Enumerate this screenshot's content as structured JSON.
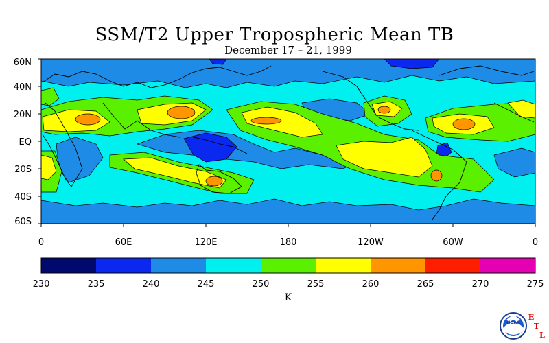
{
  "title": "SSM/T2 Upper Tropospheric Mean TB",
  "subtitle": "December 17 – 21, 1999",
  "map": {
    "lat_labels": [
      "60N",
      "40N",
      "20N",
      "EQ",
      "20S",
      "40S",
      "60S"
    ],
    "lon_labels": [
      "0",
      "60E",
      "120E",
      "180",
      "120W",
      "60W",
      "0"
    ]
  },
  "colorbar": {
    "ticks": [
      "230",
      "235",
      "240",
      "245",
      "250",
      "255",
      "260",
      "265",
      "270",
      "275"
    ],
    "colors": [
      "#000a6e",
      "#0a28f0",
      "#1e8ce6",
      "#00f0f0",
      "#5af000",
      "#ffff00",
      "#ff9600",
      "#ff1e00",
      "#e600b4"
    ],
    "unit": "K"
  },
  "logo": {
    "emblem_text": "NOAA",
    "letters": [
      "E",
      "T",
      "L"
    ]
  }
}
